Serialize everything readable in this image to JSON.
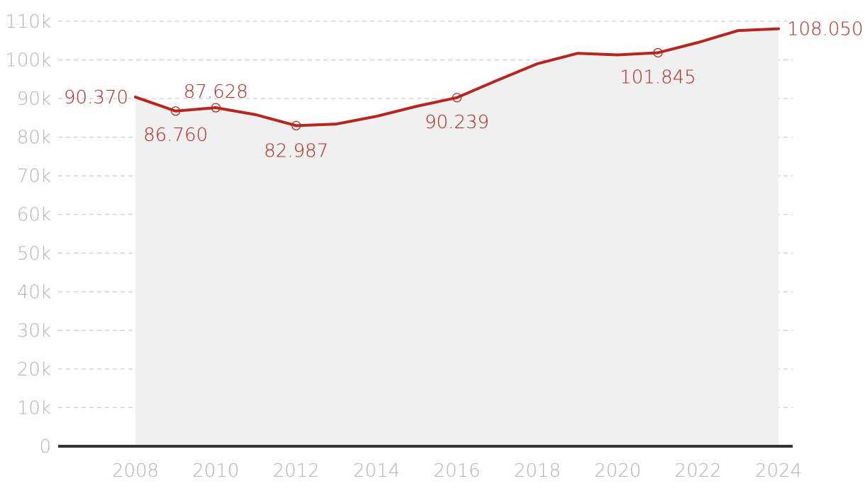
{
  "chart_data": {
    "type": "area",
    "title": "",
    "xlabel": "",
    "ylabel": "",
    "x": [
      2008,
      2009,
      2010,
      2011,
      2012,
      2013,
      2014,
      2015,
      2016,
      2017,
      2018,
      2019,
      2020,
      2021,
      2022,
      2023,
      2024
    ],
    "series": [
      {
        "values": [
          90370,
          86760,
          87628,
          85800,
          82987,
          83400,
          85400,
          88000,
          90239,
          94700,
          99000,
          101700,
          101300,
          101845,
          104500,
          107600,
          108050
        ]
      }
    ],
    "x_ticks": [
      "2008",
      "2010",
      "2012",
      "2014",
      "2016",
      "2018",
      "2020",
      "2022",
      "2024"
    ],
    "y_ticks": [
      "0",
      "10k",
      "20k",
      "30k",
      "40k",
      "50k",
      "60k",
      "70k",
      "80k",
      "90k",
      "100k",
      "110k"
    ],
    "xlim": [
      2004.25,
      2025
    ],
    "ylim": [
      0,
      110000
    ],
    "grid": true,
    "legend": "none",
    "data_labels": [
      {
        "x": 2008,
        "text": "90.370",
        "marker": false
      },
      {
        "x": 2009,
        "text": "86.760",
        "marker": true
      },
      {
        "x": 2010,
        "text": "87.628",
        "marker": true
      },
      {
        "x": 2012,
        "text": "82.987",
        "marker": true
      },
      {
        "x": 2016,
        "text": "90.239",
        "marker": true
      },
      {
        "x": 2021,
        "text": "101.845",
        "marker": true
      },
      {
        "x": 2024,
        "text": "108.050",
        "marker": false
      }
    ],
    "colors": {
      "line": "#b5261e",
      "area": "#f0f0f0",
      "grid": "#cfcfcf",
      "axis": "#333333",
      "tick_text": "#b3b3b3",
      "label_text": "#b5261e"
    }
  }
}
